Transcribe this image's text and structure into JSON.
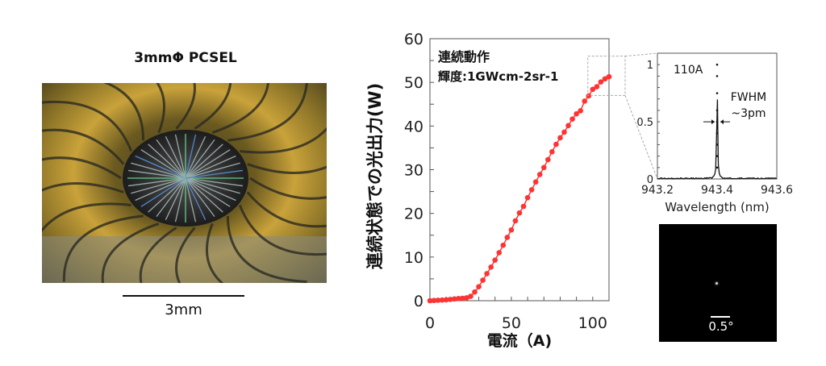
{
  "photo": {
    "title": "3mmΦ PCSEL",
    "scale_bar_label": "3mm"
  },
  "chart_data": [
    {
      "type": "line",
      "title": "",
      "xlabel": "電流（A)",
      "ylabel": "連続状態での光出力(W)",
      "xlim": [
        0,
        110
      ],
      "ylim": [
        0,
        60
      ],
      "xticks": [
        0,
        50,
        100
      ],
      "yticks": [
        0,
        10,
        20,
        30,
        40,
        50,
        60
      ],
      "annotation": [
        "連続動作",
        "輝度:1GWcm-2sr-1"
      ],
      "color": "#ff3333",
      "grid": false,
      "x": [
        0,
        2.5,
        5,
        7.5,
        10,
        12.5,
        15,
        17.5,
        20,
        22.5,
        25,
        27.5,
        30,
        32.5,
        35,
        37.5,
        40,
        42.5,
        45,
        47.5,
        50,
        52.5,
        55,
        57.5,
        60,
        62.5,
        65,
        67.5,
        70,
        72.5,
        75,
        77.5,
        80,
        82.5,
        85,
        87.5,
        90,
        92.5,
        95,
        97.5,
        100,
        102.5,
        105,
        107.5,
        110
      ],
      "y": [
        0,
        0.05,
        0.1,
        0.15,
        0.2,
        0.3,
        0.4,
        0.5,
        0.55,
        0.65,
        1.0,
        2.0,
        3.2,
        4.7,
        6.2,
        7.7,
        9.3,
        11.0,
        12.7,
        14.5,
        16.2,
        18.3,
        20.1,
        21.6,
        23.6,
        25.4,
        27.2,
        28.9,
        30.5,
        32.3,
        34.1,
        35.8,
        37.3,
        38.6,
        40.1,
        41.6,
        42.8,
        43.5,
        45.7,
        46.9,
        48.4,
        49.0,
        50.1,
        50.8,
        51.3
      ],
      "zoom_box": {
        "x": [
          97,
          110
        ],
        "y": [
          47,
          56
        ]
      }
    },
    {
      "type": "line",
      "title": "",
      "xlabel": "Wavelength (nm)",
      "ylabel": "",
      "xlim": [
        943.2,
        943.6
      ],
      "ylim": [
        0,
        1.1
      ],
      "xticks": [
        "943.2",
        "943.4",
        "943.6"
      ],
      "yticks": [
        "0",
        "0.5",
        "1"
      ],
      "annotations": [
        "110A",
        "FWHM",
        "~3pm"
      ],
      "peak_x": 943.4,
      "peak_y": 1,
      "fwhm_pm": 3
    },
    {
      "type": "heatmap",
      "description_label": "0.5°"
    }
  ]
}
